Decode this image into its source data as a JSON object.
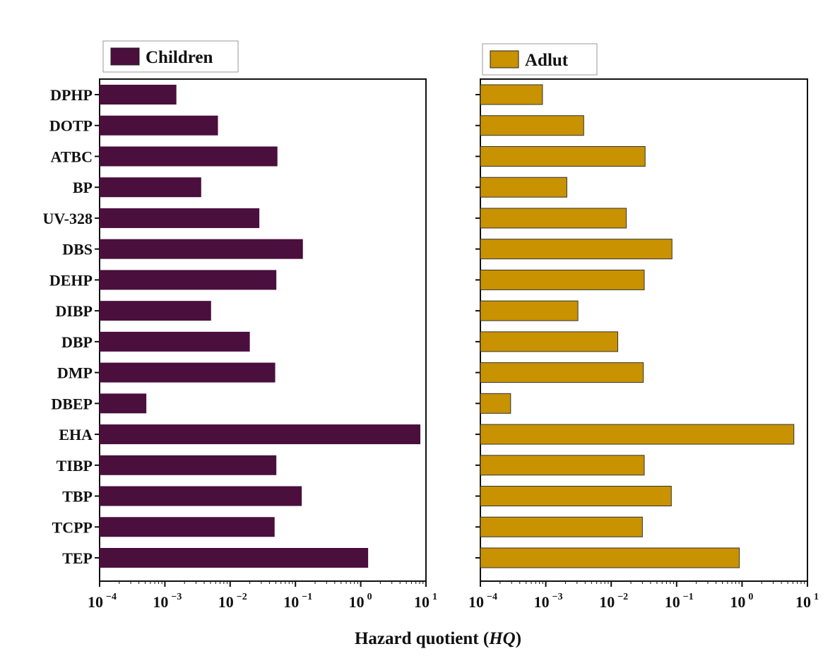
{
  "chart_data": {
    "type": "bar",
    "orientation": "horizontal",
    "xscale": "log",
    "xlabel": "Hazard quotient",
    "xlabel_italic": "HQ",
    "xlim": [
      0.0001,
      10
    ],
    "xticks": [
      {
        "base": "10",
        "exp": "−4"
      },
      {
        "base": "10",
        "exp": "−3"
      },
      {
        "base": "10",
        "exp": "−2"
      },
      {
        "base": "10",
        "exp": "−1"
      },
      {
        "base": "10",
        "exp": "0"
      },
      {
        "base": "10",
        "exp": "1"
      }
    ],
    "categories": [
      "DPHP",
      "DOTP",
      "ATBC",
      "BP",
      "UV-328",
      "DBS",
      "DEHP",
      "DIBP",
      "DBP",
      "DMP",
      "DBEP",
      "EHA",
      "TIBP",
      "TBP",
      "TCPP",
      "TEP"
    ],
    "series": [
      {
        "name": "Children",
        "color": "#4a0f3c",
        "values": [
          0.0015,
          0.0065,
          0.053,
          0.0036,
          0.028,
          0.13,
          0.051,
          0.0051,
          0.02,
          0.049,
          0.00052,
          8.2,
          0.051,
          0.125,
          0.048,
          1.3
        ]
      },
      {
        "name": "Adlut",
        "color": "#c89200",
        "values": [
          0.00089,
          0.0038,
          0.033,
          0.0021,
          0.017,
          0.085,
          0.032,
          0.0031,
          0.0126,
          0.031,
          0.00029,
          6.2,
          0.032,
          0.083,
          0.03,
          0.91
        ]
      }
    ],
    "legend": "top-left of each panel"
  }
}
